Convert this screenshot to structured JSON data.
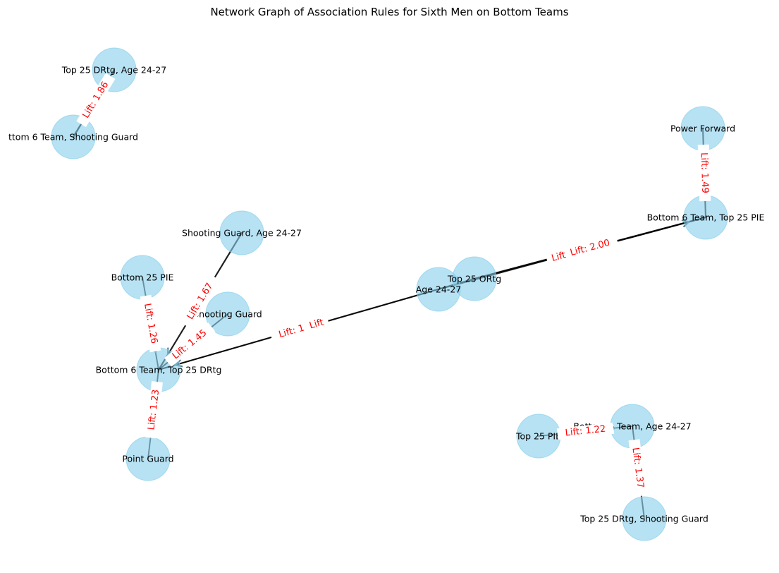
{
  "title": "Network Graph of Association Rules for Sixth Men on Bottom Teams",
  "colors": {
    "node": "#87ceeb",
    "edge": "#000000",
    "edge_label": "#ff0000"
  },
  "nodes": [
    {
      "id": "top25drtg-age",
      "label": "Top 25 DRtg, Age 24-27"
    },
    {
      "id": "b6-sg",
      "label": "ttom 6 Team, Shooting Guard"
    },
    {
      "id": "pf",
      "label": "Power Forward"
    },
    {
      "id": "b6-top25pie",
      "label": "Bottom 6 Team, Top 25 PIE"
    },
    {
      "id": "sg-age",
      "label": "Shooting Guard, Age 24-27"
    },
    {
      "id": "bottom25pie",
      "label": "Bottom 25 PIE"
    },
    {
      "id": "sg",
      "label": "Shooting Guard"
    },
    {
      "id": "age",
      "label": "Age 24-27"
    },
    {
      "id": "top25ortg",
      "label": "Top 25 ORtg"
    },
    {
      "id": "b6-top25drtg",
      "label": "Bottom 6 Team, Top 25 DRtg"
    },
    {
      "id": "pg",
      "label": "Point Guard"
    },
    {
      "id": "top25pie",
      "label": "Top 25 PIE"
    },
    {
      "id": "b6-age",
      "label": "Bottom 6 Team, Age 24-27"
    },
    {
      "id": "top25drtg-sg",
      "label": "Top 25 DRtg, Shooting Guard"
    }
  ],
  "edges": [
    {
      "source": "top25drtg-age",
      "target": "b6-sg",
      "label": "Lift: 1.86",
      "lift": 1.86
    },
    {
      "source": "pf",
      "target": "b6-top25pie",
      "label": "Lift: 1.49",
      "lift": 1.49
    },
    {
      "source": "top25ortg",
      "target": "b6-top25pie",
      "label": "Lift: 2.00",
      "lift": 2.0
    },
    {
      "source": "age",
      "target": "b6-top25pie",
      "label": "Lift",
      "lift": null
    },
    {
      "source": "sg-age",
      "target": "b6-top25drtg",
      "label": "Lift: 1.67",
      "lift": 1.67
    },
    {
      "source": "bottom25pie",
      "target": "b6-top25drtg",
      "label": "Lift: 1.26",
      "lift": 1.26
    },
    {
      "source": "sg",
      "target": "b6-top25drtg",
      "label": "Lift: 1.45",
      "lift": 1.45
    },
    {
      "source": "age",
      "target": "b6-top25drtg",
      "label": "Lift: 1.11",
      "lift": 1.11
    },
    {
      "source": "top25ortg",
      "target": "b6-top25drtg",
      "label": "Lift",
      "lift": null
    },
    {
      "source": "pg",
      "target": "b6-top25drtg",
      "label": "Lift: 1.23",
      "lift": 1.23
    },
    {
      "source": "top25pie",
      "target": "b6-age",
      "label": "Lift: 1.22",
      "lift": 1.22
    },
    {
      "source": "top25drtg-sg",
      "target": "b6-age",
      "label": "Lift: 1.37",
      "lift": 1.37
    }
  ]
}
